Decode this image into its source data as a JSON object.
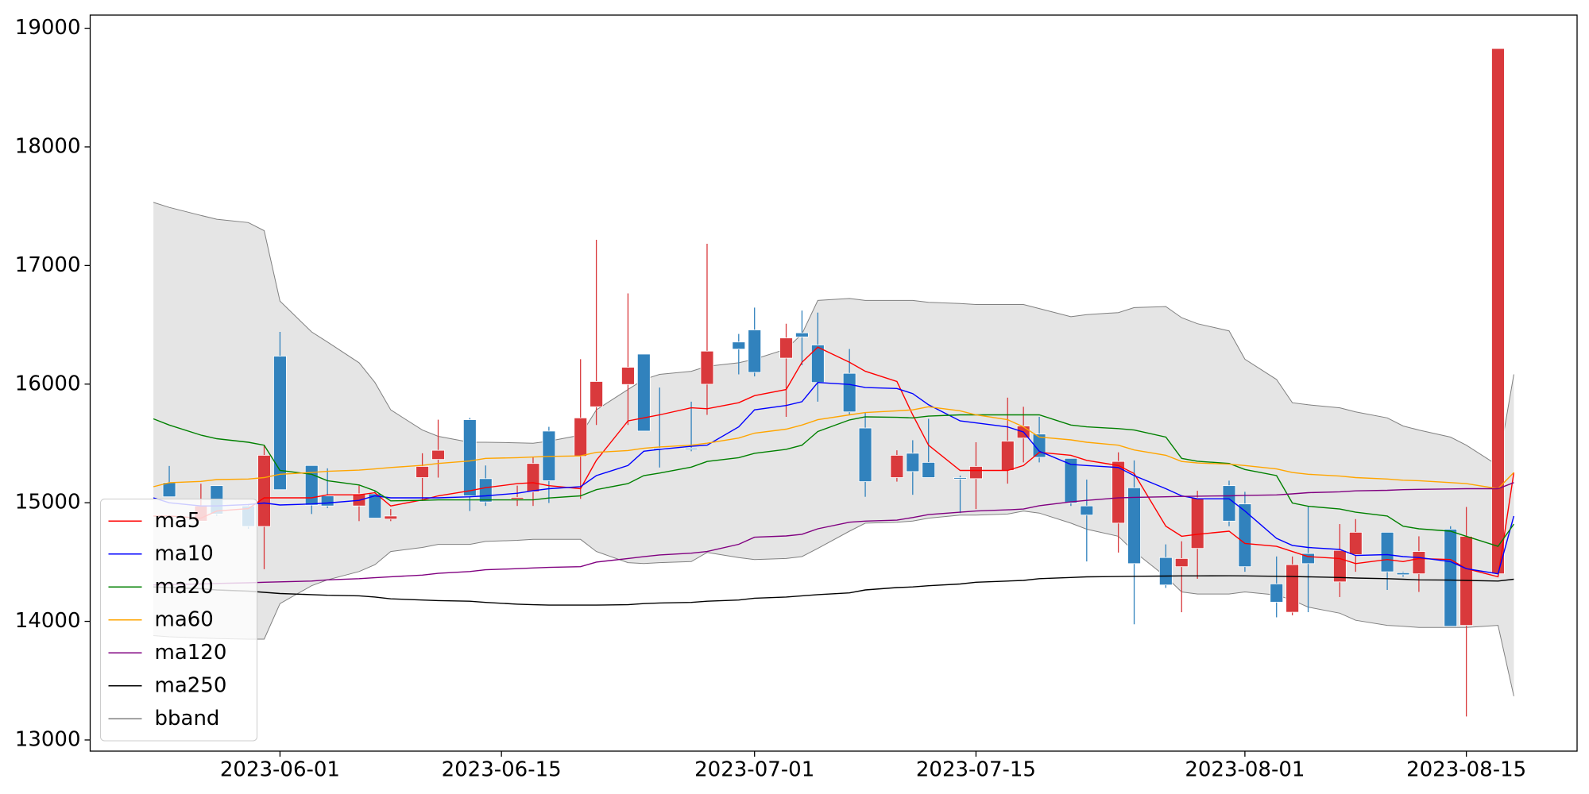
{
  "chart_data": {
    "type": "candlestick",
    "x": [
      "2023-05-24",
      "2023-05-25",
      "2023-05-27",
      "2023-05-28",
      "2023-05-30",
      "2023-05-31",
      "2023-06-01",
      "2023-06-03",
      "2023-06-04",
      "2023-06-06",
      "2023-06-07",
      "2023-06-08",
      "2023-06-10",
      "2023-06-11",
      "2023-06-13",
      "2023-06-14",
      "2023-06-16",
      "2023-06-17",
      "2023-06-18",
      "2023-06-20",
      "2023-06-21",
      "2023-06-23",
      "2023-06-24",
      "2023-06-25",
      "2023-06-27",
      "2023-06-28",
      "2023-06-30",
      "2023-07-01",
      "2023-07-03",
      "2023-07-04",
      "2023-07-05",
      "2023-07-07",
      "2023-07-08",
      "2023-07-10",
      "2023-07-11",
      "2023-07-12",
      "2023-07-14",
      "2023-07-15",
      "2023-07-17",
      "2023-07-18",
      "2023-07-19",
      "2023-07-21",
      "2023-07-22",
      "2023-07-24",
      "2023-07-25",
      "2023-07-27",
      "2023-07-28",
      "2023-07-29",
      "2023-07-31",
      "2023-08-01",
      "2023-08-03",
      "2023-08-04",
      "2023-08-05",
      "2023-08-07",
      "2023-08-08",
      "2023-08-10",
      "2023-08-11",
      "2023-08-12",
      "2023-08-14",
      "2023-08-15",
      "2023-08-17",
      "2023-08-18"
    ],
    "candles": {
      "up_color": "#d9393c",
      "down_color": "#3182bd",
      "open": [
        null,
        15170,
        14845,
        15144,
        14973,
        14800,
        16236,
        15314,
        15058,
        14973,
        15075,
        14862,
        15212,
        15365,
        15700,
        15203,
        15030,
        15092,
        15604,
        15391,
        15809,
        15997,
        16253,
        15459,
        15460,
        15999,
        16355,
        16457,
        16219,
        16432,
        16330,
        16091,
        15630,
        15212,
        15417,
        15340,
        15212,
        15203,
        15272,
        15545,
        15579,
        15374,
        14973,
        14828,
        15126,
        14538,
        14461,
        14615,
        15144,
        14990,
        14316,
        14077,
        14572,
        14333,
        14563,
        14751,
        14410,
        14401,
        14777,
        13966,
        14401,
        null
      ],
      "high": [
        null,
        15310,
        15160,
        15144,
        14990,
        15480,
        16440,
        15314,
        15290,
        15144,
        15100,
        14947,
        15417,
        15700,
        15715,
        15314,
        15144,
        15383,
        15640,
        16210,
        17217,
        16765,
        16253,
        15971,
        15852,
        17183,
        16423,
        16645,
        16509,
        16620,
        16603,
        16296,
        15758,
        15442,
        15527,
        15707,
        15229,
        15510,
        15886,
        15809,
        15724,
        15374,
        15195,
        15425,
        15357,
        14649,
        14675,
        15101,
        15186,
        15092,
        14547,
        14547,
        14973,
        14820,
        14862,
        14751,
        14418,
        14717,
        14802,
        14964,
        18829,
        null
      ],
      "low": [
        null,
        15050,
        14845,
        14890,
        14780,
        14440,
        15110,
        14905,
        14955,
        14845,
        14870,
        14845,
        15016,
        15212,
        14930,
        14973,
        14973,
        14973,
        14998,
        15033,
        15655,
        15655,
        15604,
        15297,
        15434,
        15741,
        16082,
        16065,
        15724,
        16159,
        15852,
        15741,
        15050,
        15178,
        15067,
        15212,
        14913,
        14947,
        15161,
        15340,
        15340,
        14973,
        14505,
        14580,
        13975,
        14282,
        14077,
        14359,
        14802,
        14418,
        14034,
        14051,
        14077,
        14205,
        14418,
        14265,
        14376,
        14248,
        13958,
        13198,
        14401,
        null
      ],
      "close": [
        null,
        15050,
        14973,
        14905,
        14800,
        15400,
        15110,
        14980,
        14973,
        15075,
        14870,
        14888,
        15306,
        15442,
        15058,
        15007,
        15045,
        15331,
        15186,
        15715,
        16022,
        16142,
        15604,
        15450,
        15450,
        16278,
        16295,
        16099,
        16389,
        16398,
        16014,
        15766,
        15178,
        15400,
        15263,
        15212,
        15200,
        15306,
        15519,
        15647,
        15383,
        14998,
        14896,
        15348,
        14487,
        14307,
        14530,
        15041,
        14845,
        14461,
        14162,
        14478,
        14487,
        14598,
        14751,
        14418,
        14393,
        14589,
        13958,
        14717,
        18829,
        null
      ]
    },
    "series": [
      {
        "name": "ma5",
        "color": "#ff0000",
        "values": [
          14888,
          14888,
          14870,
          14930,
          14950,
          15041,
          15041,
          15041,
          15067,
          15067,
          15084,
          14973,
          15024,
          15058,
          15101,
          15127,
          15161,
          15169,
          15144,
          15118,
          15357,
          15690,
          15715,
          15741,
          15800,
          15792,
          15843,
          15903,
          15954,
          16184,
          16312,
          16184,
          16108,
          16022,
          15741,
          15485,
          15272,
          15272,
          15272,
          15314,
          15425,
          15400,
          15357,
          15314,
          15246,
          14802,
          14717,
          14734,
          14760,
          14657,
          14632,
          14589,
          14546,
          14530,
          14487,
          14521,
          14504,
          14530,
          14521,
          14444,
          14376,
          15255
        ]
      },
      {
        "name": "ma10",
        "color": "#0000ff",
        "values": [
          15041,
          15000,
          14973,
          14973,
          14985,
          14998,
          14981,
          14990,
          14998,
          15020,
          15058,
          15041,
          15041,
          15041,
          15050,
          15058,
          15080,
          15101,
          15118,
          15135,
          15229,
          15314,
          15434,
          15450,
          15476,
          15485,
          15640,
          15783,
          15820,
          15852,
          16014,
          15997,
          15971,
          15963,
          15920,
          15826,
          15690,
          15673,
          15639,
          15596,
          15434,
          15323,
          15314,
          15297,
          15229,
          15118,
          15058,
          15033,
          15033,
          14930,
          14700,
          14640,
          14623,
          14606,
          14555,
          14563,
          14546,
          14538,
          14504,
          14444,
          14401,
          14888
        ]
      },
      {
        "name": "ma20",
        "color": "#008000",
        "values": [
          15707,
          15655,
          15570,
          15540,
          15510,
          15485,
          15272,
          15240,
          15186,
          15150,
          15101,
          15016,
          15020,
          15024,
          15024,
          15024,
          15024,
          15024,
          15040,
          15058,
          15110,
          15161,
          15229,
          15250,
          15300,
          15348,
          15380,
          15417,
          15450,
          15485,
          15600,
          15698,
          15724,
          15720,
          15715,
          15730,
          15741,
          15741,
          15741,
          15741,
          15741,
          15655,
          15640,
          15625,
          15613,
          15553,
          15374,
          15350,
          15331,
          15280,
          15229,
          14998,
          14970,
          14947,
          14920,
          14888,
          14802,
          14780,
          14760,
          14717,
          14632,
          14820
        ]
      },
      {
        "name": "ma60",
        "color": "#ffa500",
        "values": [
          15135,
          15169,
          15180,
          15195,
          15200,
          15212,
          15240,
          15255,
          15265,
          15275,
          15285,
          15297,
          15315,
          15331,
          15352,
          15374,
          15380,
          15385,
          15391,
          15395,
          15425,
          15440,
          15459,
          15470,
          15485,
          15502,
          15545,
          15587,
          15620,
          15655,
          15700,
          15741,
          15760,
          15775,
          15783,
          15809,
          15775,
          15741,
          15700,
          15640,
          15553,
          15530,
          15510,
          15485,
          15445,
          15400,
          15348,
          15335,
          15325,
          15314,
          15285,
          15255,
          15240,
          15225,
          15212,
          15200,
          15190,
          15186,
          15170,
          15161,
          15118,
          15255
        ]
      },
      {
        "name": "ma120",
        "color": "#800080",
        "values": [
          14307,
          14310,
          14315,
          14320,
          14325,
          14330,
          14333,
          14340,
          14350,
          14360,
          14368,
          14376,
          14390,
          14405,
          14420,
          14435,
          14444,
          14450,
          14455,
          14461,
          14500,
          14530,
          14545,
          14560,
          14575,
          14589,
          14650,
          14709,
          14720,
          14734,
          14780,
          14836,
          14845,
          14853,
          14875,
          14900,
          14920,
          14930,
          14940,
          14947,
          14975,
          15007,
          15020,
          15041,
          15045,
          15050,
          15053,
          15055,
          15058,
          15062,
          15066,
          15075,
          15085,
          15092,
          15100,
          15105,
          15110,
          15113,
          15116,
          15118,
          15118,
          15170
        ]
      },
      {
        "name": "ma250",
        "color": "#000000",
        "values": [
          14290,
          14285,
          14275,
          14265,
          14255,
          14245,
          14235,
          14225,
          14220,
          14215,
          14205,
          14190,
          14180,
          14175,
          14170,
          14160,
          14145,
          14140,
          14137,
          14137,
          14137,
          14140,
          14150,
          14155,
          14160,
          14170,
          14180,
          14195,
          14205,
          14215,
          14225,
          14240,
          14265,
          14285,
          14290,
          14300,
          14315,
          14330,
          14340,
          14345,
          14360,
          14370,
          14375,
          14378,
          14380,
          14382,
          14383,
          14383,
          14384,
          14383,
          14380,
          14378,
          14375,
          14370,
          14365,
          14360,
          14355,
          14350,
          14348,
          14345,
          14340,
          14355
        ]
      }
    ],
    "bband": {
      "name": "bband",
      "color": "#808080",
      "fill": "#e5e5e5",
      "upper": [
        17532,
        17490,
        17422,
        17390,
        17362,
        17294,
        16700,
        16440,
        16355,
        16180,
        16014,
        15783,
        15613,
        15560,
        15510,
        15510,
        15505,
        15502,
        15519,
        15570,
        15783,
        15954,
        16039,
        16082,
        16108,
        16150,
        16180,
        16210,
        16295,
        16423,
        16705,
        16722,
        16705,
        16705,
        16705,
        16690,
        16679,
        16671,
        16671,
        16671,
        16637,
        16568,
        16586,
        16603,
        16645,
        16654,
        16560,
        16509,
        16449,
        16210,
        16039,
        15843,
        15826,
        15800,
        15766,
        15715,
        15647,
        15613,
        15553,
        15485,
        15314,
        16082
      ],
      "lower": [
        13880,
        13870,
        13860,
        13855,
        13850,
        13850,
        14150,
        14300,
        14350,
        14420,
        14478,
        14589,
        14623,
        14649,
        14649,
        14674,
        14683,
        14691,
        14691,
        14691,
        14589,
        14495,
        14487,
        14495,
        14504,
        14581,
        14538,
        14521,
        14530,
        14546,
        14615,
        14760,
        14828,
        14836,
        14845,
        14870,
        14896,
        14896,
        14905,
        14930,
        14913,
        14828,
        14777,
        14717,
        14589,
        14376,
        14248,
        14231,
        14231,
        14248,
        14222,
        14179,
        14120,
        14069,
        14009,
        13966,
        13958,
        13949,
        13949,
        13949,
        13966,
        13369
      ]
    },
    "xlim": [
      "2023-05-20",
      "2023-08-22"
    ],
    "xticks": [
      "2023-06-01",
      "2023-06-15",
      "2023-07-01",
      "2023-07-15",
      "2023-08-01",
      "2023-08-15"
    ],
    "ylim": [
      12906,
      19111
    ],
    "yticks": [
      13000,
      14000,
      15000,
      16000,
      17000,
      18000,
      19000
    ],
    "legend": "lower left"
  }
}
